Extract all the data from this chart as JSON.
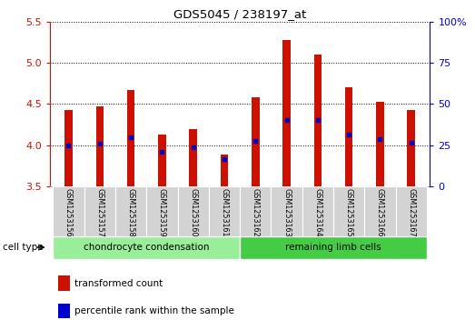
{
  "title": "GDS5045 / 238197_at",
  "samples": [
    "GSM1253156",
    "GSM1253157",
    "GSM1253158",
    "GSM1253159",
    "GSM1253160",
    "GSM1253161",
    "GSM1253162",
    "GSM1253163",
    "GSM1253164",
    "GSM1253165",
    "GSM1253166",
    "GSM1253167"
  ],
  "bar_values": [
    4.43,
    4.47,
    4.67,
    4.13,
    4.19,
    3.89,
    4.58,
    5.27,
    5.1,
    4.7,
    4.53,
    4.43
  ],
  "bar_base": 3.5,
  "percentile_values": [
    4.0,
    4.02,
    4.1,
    3.92,
    3.97,
    3.83,
    4.05,
    4.31,
    4.3,
    4.13,
    4.07,
    4.03
  ],
  "ylim_left": [
    3.5,
    5.5
  ],
  "ylim_right": [
    0,
    100
  ],
  "yticks_left": [
    3.5,
    4.0,
    4.5,
    5.0,
    5.5
  ],
  "yticks_right": [
    0,
    25,
    50,
    75,
    100
  ],
  "ytick_labels_right": [
    "0",
    "25",
    "50",
    "75",
    "100%"
  ],
  "bar_color": "#cc1100",
  "dot_color": "#0000cc",
  "grid_color": "#000000",
  "group1_label": "chondrocyte condensation",
  "group2_label": "remaining limb cells",
  "group1_color": "#99ee99",
  "group2_color": "#44cc44",
  "celltype_label": "cell type",
  "legend1": "transformed count",
  "legend2": "percentile rank within the sample",
  "tick_label_color_left": "#cc1100",
  "tick_label_color_right": "#0000cc",
  "group1_indices": [
    0,
    1,
    2,
    3,
    4,
    5
  ],
  "group2_indices": [
    6,
    7,
    8,
    9,
    10,
    11
  ],
  "bar_width": 0.25,
  "figsize": [
    5.23,
    3.63
  ],
  "dpi": 100
}
